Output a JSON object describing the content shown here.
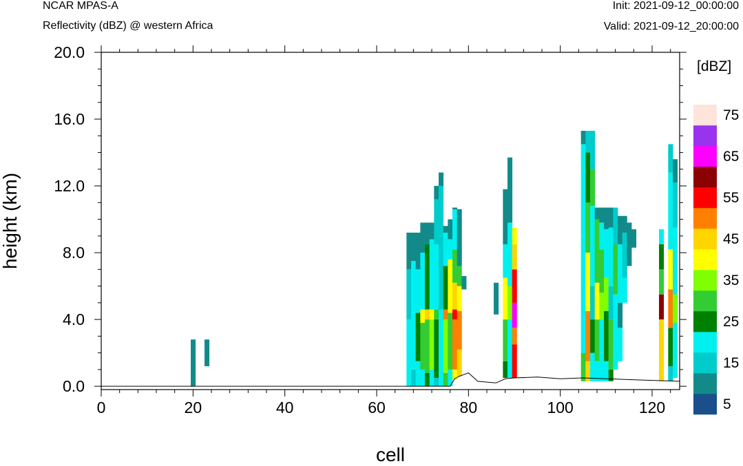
{
  "header": {
    "model": "NCAR MPAS-A",
    "field": "Reflectivity (dBZ) @ western Africa",
    "init": "Init: 2021-09-12_00:00:00",
    "valid": "Valid: 2021-09-12_20:00:00"
  },
  "chart_data": {
    "type": "heatmap",
    "xlabel": "cell",
    "ylabel": "height (km)",
    "xlim": [
      0,
      126
    ],
    "ylim": [
      -0.2,
      20.0
    ],
    "x_ticks": [
      "0",
      "20",
      "40",
      "60",
      "80",
      "100",
      "120"
    ],
    "y_ticks": [
      "0.0",
      "4.0",
      "8.0",
      "12.0",
      "16.0",
      "20.0"
    ],
    "colorbar": {
      "unit": "[dBZ]",
      "labels": [
        "5",
        "15",
        "25",
        "35",
        "45",
        "55",
        "65",
        "75"
      ],
      "colors": [
        "#1a4f8c",
        "#138a8a",
        "#00cccc",
        "#00f0f0",
        "#008000",
        "#33cc33",
        "#80ff00",
        "#ffff00",
        "#ffd500",
        "#ff8000",
        "#ff0000",
        "#8b0000",
        "#ff00ff",
        "#9933ee",
        "#ffe4dc"
      ]
    },
    "terrain": [
      [
        0,
        0
      ],
      [
        76,
        0
      ],
      [
        77,
        0.45
      ],
      [
        78,
        0.6
      ],
      [
        79,
        0.7
      ],
      [
        80,
        0.8
      ],
      [
        81,
        0.55
      ],
      [
        82,
        0.3
      ],
      [
        84,
        0.25
      ],
      [
        86,
        0.2
      ],
      [
        88,
        0.45
      ],
      [
        90,
        0.5
      ],
      [
        95,
        0.55
      ],
      [
        100,
        0.45
      ],
      [
        105,
        0.5
      ],
      [
        110,
        0.45
      ],
      [
        115,
        0.4
      ],
      [
        120,
        0.35
      ],
      [
        126,
        0.3
      ]
    ],
    "columns": [
      {
        "x": 20,
        "segments": [
          [
            0,
            2.8,
            5
          ]
        ]
      },
      {
        "x": 23,
        "segments": [
          [
            1.2,
            2.8,
            5
          ]
        ]
      },
      {
        "x": 67,
        "segments": [
          [
            0,
            0.5,
            15
          ],
          [
            0.5,
            4.0,
            15
          ],
          [
            4.0,
            7.0,
            10
          ],
          [
            7.0,
            9.2,
            5
          ]
        ]
      },
      {
        "x": 68,
        "segments": [
          [
            0,
            1.0,
            10
          ],
          [
            1.0,
            4.4,
            15
          ],
          [
            4.4,
            7.5,
            15
          ],
          [
            7.5,
            9.2,
            5
          ]
        ]
      },
      {
        "x": 69,
        "segments": [
          [
            0,
            1.5,
            15
          ],
          [
            1.5,
            4.4,
            20
          ],
          [
            4.4,
            7.0,
            15
          ],
          [
            7.0,
            9.2,
            5
          ]
        ]
      },
      {
        "x": 70,
        "segments": [
          [
            0,
            1.0,
            15
          ],
          [
            1.0,
            3.8,
            25
          ],
          [
            3.8,
            4.6,
            35
          ],
          [
            4.6,
            8.0,
            15
          ],
          [
            8.0,
            9.8,
            5
          ]
        ]
      },
      {
        "x": 71,
        "segments": [
          [
            0,
            0.8,
            20
          ],
          [
            0.8,
            4.0,
            25
          ],
          [
            4.0,
            4.6,
            40
          ],
          [
            4.6,
            8.5,
            20
          ],
          [
            8.5,
            9.8,
            5
          ]
        ]
      },
      {
        "x": 72,
        "segments": [
          [
            0,
            1.0,
            15
          ],
          [
            1.0,
            4.0,
            30
          ],
          [
            4.0,
            4.6,
            35
          ],
          [
            4.6,
            8.8,
            15
          ],
          [
            8.8,
            9.8,
            5
          ]
        ]
      },
      {
        "x": 73,
        "segments": [
          [
            0,
            0.5,
            10
          ],
          [
            0.5,
            4.0,
            20
          ],
          [
            4.0,
            4.6,
            25
          ],
          [
            4.6,
            8.5,
            15
          ],
          [
            8.5,
            11.2,
            10
          ],
          [
            11.2,
            12.0,
            5
          ]
        ]
      },
      {
        "x": 74,
        "segments": [
          [
            0,
            0.5,
            15
          ],
          [
            0.5,
            3.5,
            15
          ],
          [
            3.5,
            4.6,
            15
          ],
          [
            4.6,
            9.0,
            10
          ],
          [
            9.0,
            12.0,
            10
          ],
          [
            12.0,
            12.8,
            5
          ]
        ]
      },
      {
        "x": 75,
        "segments": [
          [
            0,
            0.8,
            25
          ],
          [
            0.8,
            4.0,
            30
          ],
          [
            4.0,
            4.6,
            45
          ],
          [
            4.6,
            7.2,
            20
          ],
          [
            7.2,
            9.2,
            15
          ],
          [
            9.2,
            9.6,
            5
          ]
        ]
      },
      {
        "x": 76,
        "segments": [
          [
            0,
            1.0,
            15
          ],
          [
            1.0,
            4.4,
            25
          ],
          [
            4.4,
            7.6,
            35
          ],
          [
            7.6,
            8.8,
            15
          ],
          [
            8.8,
            10.0,
            5
          ]
        ]
      },
      {
        "x": 77,
        "segments": [
          [
            0.4,
            1.0,
            35
          ],
          [
            1.0,
            4.0,
            45
          ],
          [
            4.0,
            4.6,
            50
          ],
          [
            4.6,
            6.2,
            40
          ],
          [
            6.2,
            8.2,
            25
          ],
          [
            8.2,
            10.6,
            15
          ],
          [
            10.6,
            10.7,
            5
          ]
        ]
      },
      {
        "x": 78,
        "segments": [
          [
            0.6,
            2.2,
            40
          ],
          [
            2.2,
            4.5,
            45
          ],
          [
            4.5,
            6.0,
            35
          ],
          [
            6.0,
            7.2,
            25
          ],
          [
            7.2,
            10.6,
            5
          ]
        ]
      },
      {
        "x": 79,
        "segments": [
          [
            5.8,
            6.6,
            5
          ]
        ]
      },
      {
        "x": 86,
        "segments": [
          [
            4.3,
            6.2,
            5
          ]
        ]
      },
      {
        "x": 88,
        "segments": [
          [
            0.5,
            1.5,
            20
          ],
          [
            1.5,
            4.0,
            25
          ],
          [
            4.0,
            6.5,
            35
          ],
          [
            6.5,
            8.5,
            15
          ],
          [
            8.5,
            11.8,
            5
          ]
        ]
      },
      {
        "x": 89,
        "segments": [
          [
            0.5,
            4.0,
            15
          ],
          [
            4.0,
            6.0,
            30
          ],
          [
            6.0,
            9.8,
            15
          ],
          [
            9.8,
            13.7,
            5
          ]
        ]
      },
      {
        "x": 90,
        "segments": [
          [
            0.5,
            2.5,
            50
          ],
          [
            2.5,
            3.5,
            45
          ],
          [
            3.5,
            5.0,
            60
          ],
          [
            5.0,
            7.0,
            50
          ],
          [
            7.0,
            8.5,
            40
          ],
          [
            8.5,
            9.5,
            35
          ]
        ]
      },
      {
        "x": 105,
        "segments": [
          [
            0.3,
            2.0,
            25
          ],
          [
            2.0,
            4.0,
            15
          ],
          [
            4.0,
            9.0,
            15
          ],
          [
            9.0,
            14.5,
            15
          ],
          [
            14.5,
            15.3,
            5
          ]
        ]
      },
      {
        "x": 106,
        "segments": [
          [
            0.3,
            1.5,
            40
          ],
          [
            1.5,
            4.5,
            45
          ],
          [
            4.5,
            8.0,
            35
          ],
          [
            8.0,
            11.0,
            25
          ],
          [
            11.0,
            14.0,
            20
          ],
          [
            14.0,
            15.3,
            10
          ]
        ]
      },
      {
        "x": 107,
        "segments": [
          [
            0.3,
            2.0,
            15
          ],
          [
            2.0,
            4.0,
            20
          ],
          [
            4.0,
            6.0,
            10
          ],
          [
            6.0,
            10.8,
            15
          ],
          [
            10.8,
            13.0,
            25
          ],
          [
            13.0,
            15.3,
            10
          ]
        ]
      },
      {
        "x": 108,
        "segments": [
          [
            0.3,
            1.5,
            15
          ],
          [
            1.5,
            4.0,
            25
          ],
          [
            4.0,
            6.2,
            35
          ],
          [
            6.2,
            10.0,
            25
          ],
          [
            10.0,
            10.7,
            5
          ]
        ]
      },
      {
        "x": 109,
        "segments": [
          [
            0.3,
            2.0,
            15
          ],
          [
            2.0,
            4.0,
            15
          ],
          [
            4.0,
            5.6,
            30
          ],
          [
            5.6,
            8.2,
            25
          ],
          [
            8.2,
            9.8,
            15
          ],
          [
            9.8,
            10.7,
            5
          ]
        ]
      },
      {
        "x": 110,
        "segments": [
          [
            0.3,
            1.5,
            15
          ],
          [
            1.5,
            4.5,
            20
          ],
          [
            4.5,
            6.5,
            30
          ],
          [
            6.5,
            9.4,
            15
          ],
          [
            9.4,
            10.7,
            5
          ]
        ]
      },
      {
        "x": 111,
        "segments": [
          [
            0.3,
            1.0,
            20
          ],
          [
            1.0,
            4.0,
            25
          ],
          [
            4.0,
            6.0,
            10
          ],
          [
            6.0,
            9.5,
            15
          ],
          [
            9.5,
            10.7,
            5
          ]
        ]
      },
      {
        "x": 112,
        "segments": [
          [
            1.0,
            3.0,
            15
          ],
          [
            3.0,
            5.5,
            15
          ],
          [
            5.5,
            8.5,
            25
          ],
          [
            8.5,
            10.7,
            10
          ]
        ]
      },
      {
        "x": 113,
        "segments": [
          [
            1.5,
            3.5,
            15
          ],
          [
            3.5,
            5.0,
            5
          ],
          [
            5.0,
            8.5,
            15
          ],
          [
            8.5,
            10.2,
            5
          ]
        ]
      },
      {
        "x": 114,
        "segments": [
          [
            5.0,
            6.5,
            15
          ],
          [
            6.5,
            9.2,
            10
          ],
          [
            9.2,
            10.2,
            5
          ]
        ]
      },
      {
        "x": 115,
        "segments": [
          [
            7.2,
            9.8,
            5
          ]
        ]
      },
      {
        "x": 116,
        "segments": [
          [
            8.3,
            9.4,
            5
          ]
        ]
      },
      {
        "x": 122,
        "segments": [
          [
            0.3,
            4.0,
            40
          ],
          [
            4.0,
            5.5,
            55
          ],
          [
            5.5,
            7.0,
            25
          ],
          [
            7.0,
            8.5,
            20
          ],
          [
            8.5,
            9.4,
            15
          ]
        ]
      },
      {
        "x": 124,
        "segments": [
          [
            0.3,
            1.2,
            10
          ],
          [
            1.2,
            3.5,
            20
          ],
          [
            3.5,
            5.8,
            45
          ],
          [
            5.8,
            8.2,
            35
          ],
          [
            8.2,
            12.8,
            15
          ],
          [
            12.8,
            14.5,
            10
          ]
        ]
      },
      {
        "x": 125,
        "segments": [
          [
            0.5,
            3.8,
            15
          ],
          [
            3.8,
            5.5,
            30
          ],
          [
            5.5,
            9.5,
            15
          ],
          [
            9.5,
            12.2,
            10
          ],
          [
            12.2,
            13.6,
            5
          ]
        ]
      }
    ]
  }
}
